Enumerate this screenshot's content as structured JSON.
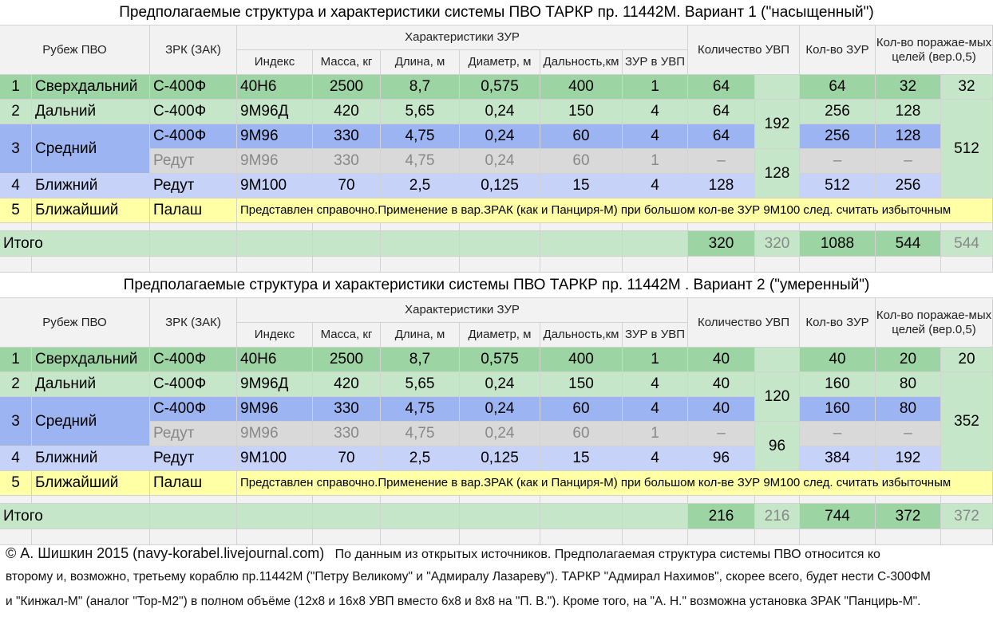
{
  "colors": {
    "green_dark": "#9dd4a3",
    "green_light": "#c6e6c9",
    "blue": "#9db4f2",
    "blue_light": "#c6d2f8",
    "gray": "#d9d9d9",
    "yellow": "#ffffa6",
    "header_bg": "#f2f2f2",
    "white": "#ffffff"
  },
  "headers": {
    "rubezh": "Рубеж ПВО",
    "zrk": "ЗРК (ЗАК)",
    "har": "Характеристики ЗУР",
    "index": "Индекс",
    "massa": "Масса, кг",
    "dlina": "Длина, м",
    "diam": "Диаметр, м",
    "dalnost": "Дальность,км",
    "zur_uvp": "ЗУР в УВП",
    "kol_uvp": "Количество УВП",
    "kol_zur": "Кол-во ЗУР",
    "kol_tsel": "Кол-во поражае-мых целей (вер.0,5)"
  },
  "tables": [
    {
      "title": "Предполагаемые структура и характеристики системы ПВО ТАРКР пр. 11442М. Вариант 1 (\"насыщенный\")",
      "rows": [
        {
          "num": "1",
          "name": "Сверхдальний",
          "zrk": "С-400Ф",
          "idx": "40Н6",
          "mass": "2500",
          "len": "8,7",
          "diam": "0,575",
          "range": "400",
          "per": "1",
          "uvp": "64",
          "zur": "64",
          "tgt": "32"
        },
        {
          "num": "2",
          "name": "Дальний",
          "zrk": "С-400Ф",
          "idx": "9М96Д",
          "mass": "420",
          "len": "5,65",
          "diam": "0,24",
          "range": "150",
          "per": "4",
          "uvp": "64",
          "zur": "256",
          "tgt": "128"
        },
        {
          "num": "3",
          "name": "Средний",
          "zrk": "С-400Ф",
          "idx": "9М96",
          "mass": "330",
          "len": "4,75",
          "diam": "0,24",
          "range": "60",
          "per": "4",
          "uvp": "64",
          "zur": "256",
          "tgt": "128"
        },
        {
          "zrk": "Редут",
          "idx": "9М96",
          "mass": "330",
          "len": "4,75",
          "diam": "0,24",
          "range": "60",
          "per": "1",
          "uvp": "–",
          "zur": "–",
          "tgt": "–"
        },
        {
          "num": "4",
          "name": "Ближний",
          "zrk": "Редут",
          "idx": "9М100",
          "mass": "70",
          "len": "2,5",
          "diam": "0,125",
          "range": "15",
          "per": "4",
          "uvp": "128",
          "zur": "512",
          "tgt": "256"
        },
        {
          "num": "5",
          "name": "Ближайший",
          "zrk": "Палаш",
          "note": "Представлен справочно.Применение в вар.ЗРАК (как и Панциря-М) при большом кол-ве ЗУР 9М100 след. считать избыточным"
        }
      ],
      "group_uvp_a": "192",
      "group_uvp_b": "128",
      "group_tgt_a": "32",
      "group_tgt_b": "512",
      "total": {
        "label": "Итого",
        "uvp": "320",
        "uvp2": "320",
        "zur": "1088",
        "tgt": "544",
        "tgt2": "544"
      }
    },
    {
      "title": "Предполагаемые структура и характеристики системы ПВО ТАРКР пр. 11442М . Вариант 2 (\"умеренный\")",
      "rows": [
        {
          "num": "1",
          "name": "Сверхдальний",
          "zrk": "С-400Ф",
          "idx": "40Н6",
          "mass": "2500",
          "len": "8,7",
          "diam": "0,575",
          "range": "400",
          "per": "1",
          "uvp": "40",
          "zur": "40",
          "tgt": "20"
        },
        {
          "num": "2",
          "name": "Дальний",
          "zrk": "С-400Ф",
          "idx": "9М96Д",
          "mass": "420",
          "len": "5,65",
          "diam": "0,24",
          "range": "150",
          "per": "4",
          "uvp": "40",
          "zur": "160",
          "tgt": "80"
        },
        {
          "num": "3",
          "name": "Средний",
          "zrk": "С-400Ф",
          "idx": "9М96",
          "mass": "330",
          "len": "4,75",
          "diam": "0,24",
          "range": "60",
          "per": "4",
          "uvp": "40",
          "zur": "160",
          "tgt": "80"
        },
        {
          "zrk": "Редут",
          "idx": "9М96",
          "mass": "330",
          "len": "4,75",
          "diam": "0,24",
          "range": "60",
          "per": "1",
          "uvp": "–",
          "zur": "–",
          "tgt": "–"
        },
        {
          "num": "4",
          "name": "Ближний",
          "zrk": "Редут",
          "idx": "9М100",
          "mass": "70",
          "len": "2,5",
          "diam": "0,125",
          "range": "15",
          "per": "4",
          "uvp": "96",
          "zur": "384",
          "tgt": "192"
        },
        {
          "num": "5",
          "name": "Ближайший",
          "zrk": "Палаш",
          "note": "Представлен справочно.Применение в вар.ЗРАК (как и Панциря-М) при большом кол-ве ЗУР 9М100 след. считать избыточным"
        }
      ],
      "group_uvp_a": "120",
      "group_uvp_b": "96",
      "group_tgt_a": "20",
      "group_tgt_b": "352",
      "total": {
        "label": "Итого",
        "uvp": "216",
        "uvp2": "216",
        "zur": "744",
        "tgt": "372",
        "tgt2": "372"
      }
    }
  ],
  "footer": {
    "credit": "© А. Шишкин 2015 (navy-korabel.livejournal.com)",
    "line1": "По данным из открытых источников. Предполагаемая структура системы ПВО относится ко",
    "line2": "второму и, возможно, третьему кораблю пр.11442М (\"Петру Великому\" и \"Адмиралу Лазареву\"). ТАРКР \"Адмирал Нахимов\", скорее всего, будет нести С-300ФМ",
    "line3": "и \"Кинжал-М\" (аналог \"Тор-М2\") в полном объёме (12х8 и 16х8 УВП вместо 6х8 и 8х8 на \"П. В.\"). Кроме того, на \"А. Н.\" возможна установка ЗРАК \"Панцирь-М\"."
  }
}
